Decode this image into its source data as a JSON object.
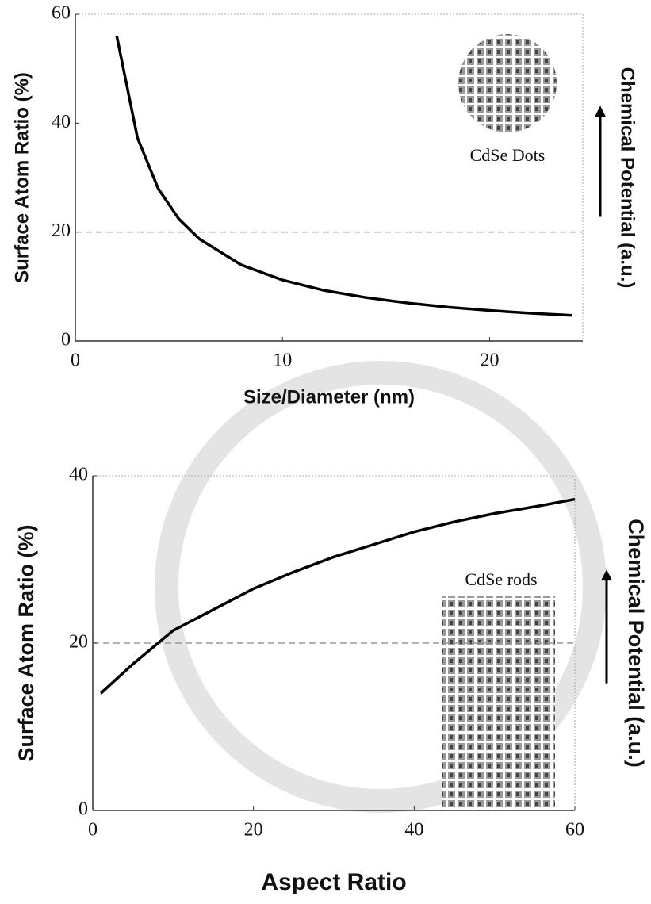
{
  "chart_data": [
    {
      "type": "line",
      "x_label": "Size/Diameter (nm)",
      "y_label": "Surface Atom Ratio (%)",
      "right_label": "Chemical Potential (a.u.)",
      "annotation": "CdSe Dots",
      "xlim": [
        0,
        24.5
      ],
      "ylim": [
        0,
        60
      ],
      "xticks": [
        0,
        10,
        20
      ],
      "yticks": [
        0,
        20,
        40,
        60
      ],
      "hline": 20,
      "series": [
        {
          "color": "#000000",
          "x": [
            2,
            3,
            4,
            5,
            6,
            8,
            10,
            12,
            14,
            16,
            18,
            20,
            22,
            24
          ],
          "values": [
            56,
            37.3,
            28,
            22.4,
            18.7,
            14,
            11.2,
            9.3,
            8,
            7,
            6.2,
            5.6,
            5.1,
            4.7
          ]
        }
      ]
    },
    {
      "type": "line",
      "x_label": "Aspect Ratio",
      "y_label": "Surface Atom Ratio (%)",
      "right_label": "Chemical Potential (a.u.)",
      "annotation": "CdSe rods",
      "xlim": [
        0,
        60
      ],
      "ylim": [
        0,
        40
      ],
      "xticks": [
        0,
        20,
        40,
        60
      ],
      "yticks": [
        0,
        20,
        40
      ],
      "hline": 20,
      "series": [
        {
          "color": "#000000",
          "x": [
            1,
            5,
            10,
            15,
            20,
            25,
            30,
            35,
            40,
            45,
            50,
            55,
            60
          ],
          "values": [
            14,
            17.5,
            21.5,
            24,
            26.5,
            28.5,
            30.3,
            31.8,
            33.3,
            34.5,
            35.5,
            36.3,
            37.2
          ]
        }
      ]
    }
  ]
}
